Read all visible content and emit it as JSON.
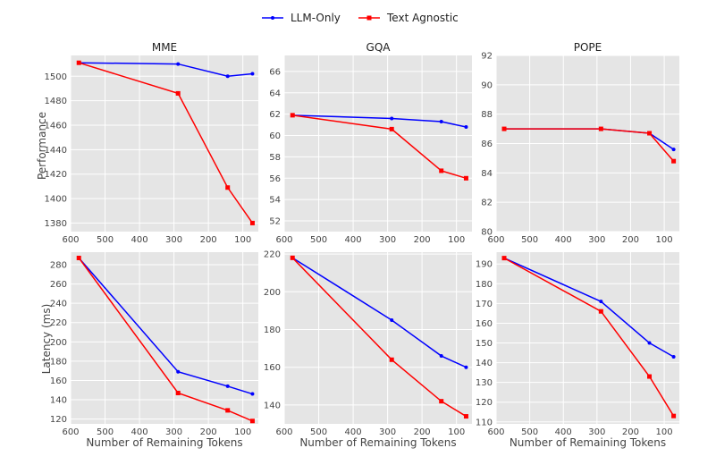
{
  "legend": {
    "position": "top-center",
    "items": [
      {
        "label": "LLM-Only",
        "color": "#0000ff",
        "marker": "circle"
      },
      {
        "label": "Text Agnostic",
        "color": "#ff0000",
        "marker": "square"
      }
    ]
  },
  "labels": {
    "ylabel_top": "Performance",
    "ylabel_bottom": "Latency (ms)",
    "xlabel": "Number of Remaining Tokens"
  },
  "chart_data": [
    {
      "type": "line",
      "title": "MME",
      "xlabel": "",
      "ylabel": "Performance",
      "x": [
        576,
        288,
        144,
        72
      ],
      "xlim": [
        600,
        55
      ],
      "xticks": [
        600,
        500,
        400,
        300,
        200,
        100
      ],
      "ylim": [
        1373,
        1517
      ],
      "yticks": [
        1380,
        1400,
        1420,
        1440,
        1460,
        1480,
        1500
      ],
      "grid": true,
      "series": [
        {
          "name": "LLM-Only",
          "color": "#0000ff",
          "values": [
            1511,
            1510,
            1500,
            1502
          ]
        },
        {
          "name": "Text Agnostic",
          "color": "#ff0000",
          "values": [
            1511,
            1486,
            1409,
            1380
          ]
        }
      ]
    },
    {
      "type": "line",
      "title": "GQA",
      "xlabel": "",
      "ylabel": "",
      "x": [
        576,
        288,
        144,
        72
      ],
      "xlim": [
        600,
        55
      ],
      "xticks": [
        600,
        500,
        400,
        300,
        200,
        100
      ],
      "ylim": [
        51,
        67.5
      ],
      "yticks": [
        52,
        54,
        56,
        58,
        60,
        62,
        64,
        66
      ],
      "grid": true,
      "series": [
        {
          "name": "LLM-Only",
          "color": "#0000ff",
          "values": [
            61.9,
            61.6,
            61.3,
            60.8
          ]
        },
        {
          "name": "Text Agnostic",
          "color": "#ff0000",
          "values": [
            61.9,
            60.6,
            56.7,
            56.0
          ]
        }
      ]
    },
    {
      "type": "line",
      "title": "POPE",
      "xlabel": "",
      "ylabel": "",
      "x": [
        576,
        288,
        144,
        72
      ],
      "xlim": [
        600,
        55
      ],
      "xticks": [
        600,
        500,
        400,
        300,
        200,
        100
      ],
      "ylim": [
        80,
        92
      ],
      "yticks": [
        80,
        82,
        84,
        86,
        88,
        90,
        92
      ],
      "grid": true,
      "series": [
        {
          "name": "LLM-Only",
          "color": "#0000ff",
          "values": [
            87.0,
            87.0,
            86.7,
            85.6
          ]
        },
        {
          "name": "Text Agnostic",
          "color": "#ff0000",
          "values": [
            87.0,
            87.0,
            86.7,
            84.8
          ]
        }
      ]
    },
    {
      "type": "line",
      "title": "",
      "xlabel": "Number of Remaining Tokens",
      "ylabel": "Latency (ms)",
      "x": [
        576,
        288,
        144,
        72
      ],
      "xlim": [
        600,
        55
      ],
      "xticks": [
        600,
        500,
        400,
        300,
        200,
        100
      ],
      "ylim": [
        115,
        293
      ],
      "yticks": [
        120,
        140,
        160,
        180,
        200,
        220,
        240,
        260,
        280
      ],
      "grid": true,
      "series": [
        {
          "name": "LLM-Only",
          "color": "#0000ff",
          "values": [
            287,
            169,
            154,
            146
          ]
        },
        {
          "name": "Text Agnostic",
          "color": "#ff0000",
          "values": [
            287,
            147,
            129,
            118
          ]
        }
      ]
    },
    {
      "type": "line",
      "title": "",
      "xlabel": "Number of Remaining Tokens",
      "ylabel": "",
      "x": [
        576,
        288,
        144,
        72
      ],
      "xlim": [
        600,
        55
      ],
      "xticks": [
        600,
        500,
        400,
        300,
        200,
        100
      ],
      "ylim": [
        130,
        221
      ],
      "yticks": [
        140,
        160,
        180,
        200,
        220
      ],
      "grid": true,
      "series": [
        {
          "name": "LLM-Only",
          "color": "#0000ff",
          "values": [
            218,
            185,
            166,
            160
          ]
        },
        {
          "name": "Text Agnostic",
          "color": "#ff0000",
          "values": [
            218,
            164,
            142,
            134
          ]
        }
      ]
    },
    {
      "type": "line",
      "title": "",
      "xlabel": "Number of Remaining Tokens",
      "ylabel": "",
      "x": [
        576,
        288,
        144,
        72
      ],
      "xlim": [
        600,
        55
      ],
      "xticks": [
        600,
        500,
        400,
        300,
        200,
        100
      ],
      "ylim": [
        109,
        196
      ],
      "yticks": [
        110,
        120,
        130,
        140,
        150,
        160,
        170,
        180,
        190
      ],
      "grid": true,
      "series": [
        {
          "name": "LLM-Only",
          "color": "#0000ff",
          "values": [
            193,
            171,
            150,
            143
          ]
        },
        {
          "name": "Text Agnostic",
          "color": "#ff0000",
          "values": [
            193,
            166,
            133,
            113
          ]
        }
      ]
    }
  ]
}
